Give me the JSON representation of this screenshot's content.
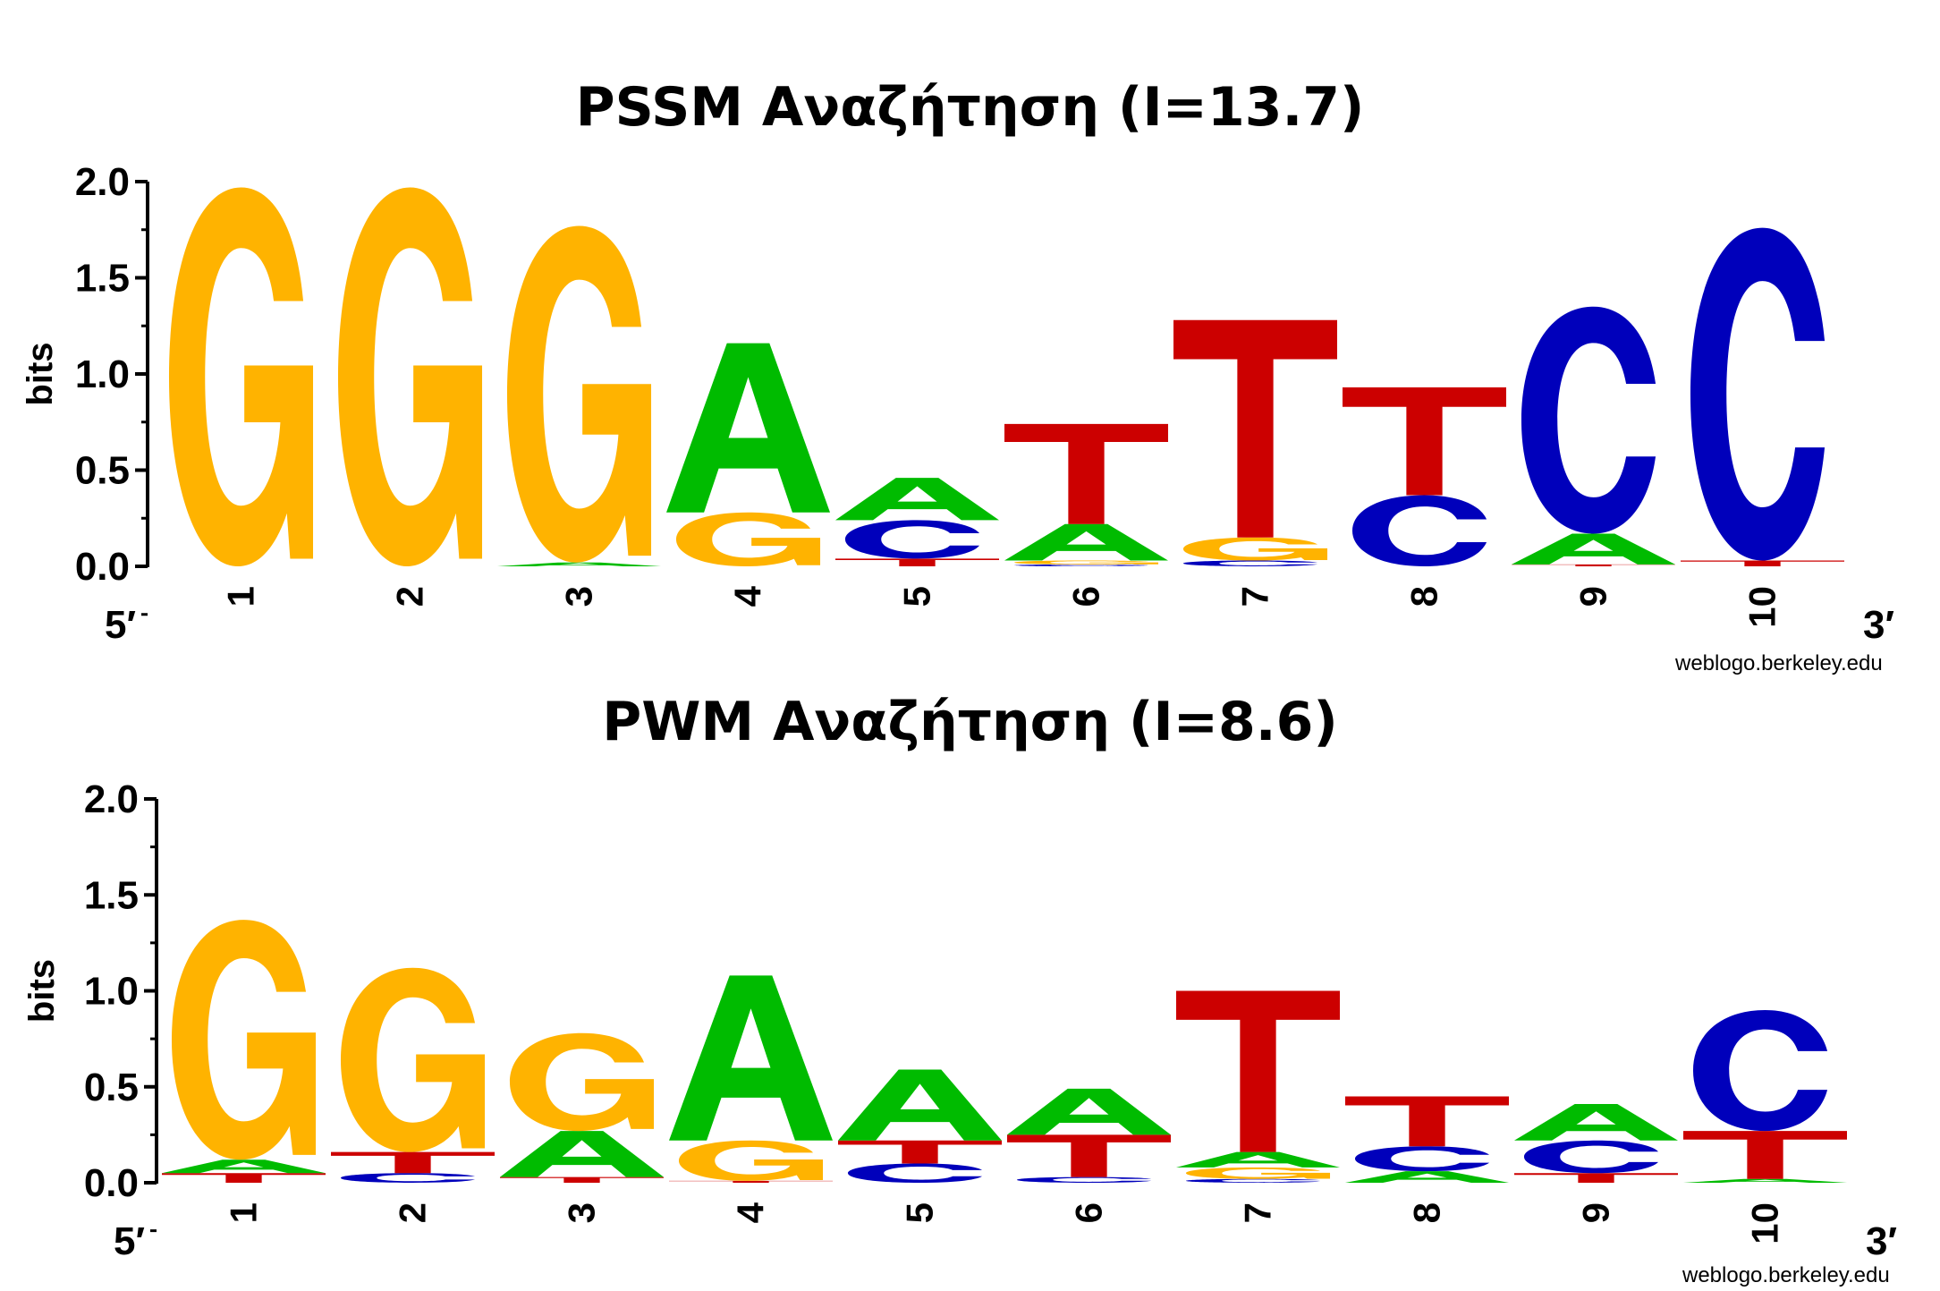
{
  "colors": {
    "A": "#00bb00",
    "C": "#0000bb",
    "G": "#ffb300",
    "T": "#cc0000"
  },
  "chart_data": [
    {
      "type": "sequence-logo",
      "title": "PSSM Αναζήτηση (I=13.7)",
      "ylabel": "bits",
      "ylim": [
        0,
        2.0
      ],
      "yticks": [
        "0.0",
        "0.5",
        "1.0",
        "1.5",
        "2.0"
      ],
      "positions": [
        "1",
        "2",
        "3",
        "4",
        "5",
        "6",
        "7",
        "8",
        "9",
        "10"
      ],
      "end_labels": {
        "left": "5′",
        "right": "3′"
      },
      "credit": "weblogo.berkeley.edu",
      "stacks": [
        [
          {
            "l": "G",
            "h": 1.97
          }
        ],
        [
          {
            "l": "G",
            "h": 1.97
          }
        ],
        [
          {
            "l": "A",
            "h": 0.02
          },
          {
            "l": "G",
            "h": 1.75
          }
        ],
        [
          {
            "l": "G",
            "h": 0.28
          },
          {
            "l": "A",
            "h": 0.88
          }
        ],
        [
          {
            "l": "T",
            "h": 0.04
          },
          {
            "l": "C",
            "h": 0.2
          },
          {
            "l": "A",
            "h": 0.22
          }
        ],
        [
          {
            "l": "C",
            "h": 0.01
          },
          {
            "l": "G",
            "h": 0.02
          },
          {
            "l": "A",
            "h": 0.19
          },
          {
            "l": "T",
            "h": 0.52
          }
        ],
        [
          {
            "l": "C",
            "h": 0.03
          },
          {
            "l": "G",
            "h": 0.12
          },
          {
            "l": "T",
            "h": 1.13
          }
        ],
        [
          {
            "l": "C",
            "h": 0.37
          },
          {
            "l": "T",
            "h": 0.56
          }
        ],
        [
          {
            "l": "T",
            "h": 0.01
          },
          {
            "l": "A",
            "h": 0.16
          },
          {
            "l": "C",
            "h": 1.18
          }
        ],
        [
          {
            "l": "T",
            "h": 0.03
          },
          {
            "l": "C",
            "h": 1.73
          }
        ]
      ]
    },
    {
      "type": "sequence-logo",
      "title": "PWM Αναζήτηση (I=8.6)",
      "ylabel": "bits",
      "ylim": [
        0,
        2.0
      ],
      "yticks": [
        "0.0",
        "0.5",
        "1.0",
        "1.5",
        "2.0"
      ],
      "positions": [
        "1",
        "2",
        "3",
        "4",
        "5",
        "6",
        "7",
        "8",
        "9",
        "10"
      ],
      "end_labels": {
        "left": "5′",
        "right": "3′"
      },
      "credit": "weblogo.berkeley.edu",
      "stacks": [
        [
          {
            "l": "T",
            "h": 0.05
          },
          {
            "l": "A",
            "h": 0.07
          },
          {
            "l": "G",
            "h": 1.25
          }
        ],
        [
          {
            "l": "C",
            "h": 0.05
          },
          {
            "l": "T",
            "h": 0.11
          },
          {
            "l": "G",
            "h": 0.96
          }
        ],
        [
          {
            "l": "T",
            "h": 0.03
          },
          {
            "l": "A",
            "h": 0.24
          },
          {
            "l": "G",
            "h": 0.51
          }
        ],
        [
          {
            "l": "T",
            "h": 0.01
          },
          {
            "l": "G",
            "h": 0.21
          },
          {
            "l": "A",
            "h": 0.86
          }
        ],
        [
          {
            "l": "C",
            "h": 0.1
          },
          {
            "l": "T",
            "h": 0.12
          },
          {
            "l": "A",
            "h": 0.37
          }
        ],
        [
          {
            "l": "C",
            "h": 0.03
          },
          {
            "l": "T",
            "h": 0.22
          },
          {
            "l": "A",
            "h": 0.24
          }
        ],
        [
          {
            "l": "C",
            "h": 0.02
          },
          {
            "l": "G",
            "h": 0.06
          },
          {
            "l": "A",
            "h": 0.08
          },
          {
            "l": "T",
            "h": 0.84
          }
        ],
        [
          {
            "l": "A",
            "h": 0.06
          },
          {
            "l": "C",
            "h": 0.13
          },
          {
            "l": "T",
            "h": 0.26
          }
        ],
        [
          {
            "l": "T",
            "h": 0.05
          },
          {
            "l": "C",
            "h": 0.17
          },
          {
            "l": "A",
            "h": 0.19
          }
        ],
        [
          {
            "l": "A",
            "h": 0.02
          },
          {
            "l": "T",
            "h": 0.25
          },
          {
            "l": "C",
            "h": 0.63
          }
        ]
      ]
    }
  ]
}
